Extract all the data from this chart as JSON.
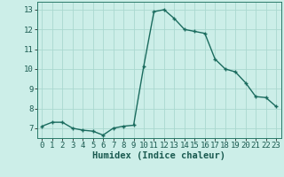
{
  "x": [
    0,
    1,
    2,
    3,
    4,
    5,
    6,
    7,
    8,
    9,
    10,
    11,
    12,
    13,
    14,
    15,
    16,
    17,
    18,
    19,
    20,
    21,
    22,
    23
  ],
  "y": [
    7.1,
    7.3,
    7.3,
    7.0,
    6.9,
    6.85,
    6.65,
    7.0,
    7.1,
    7.15,
    10.15,
    12.9,
    13.0,
    12.55,
    12.0,
    11.9,
    11.8,
    10.5,
    10.0,
    9.85,
    9.3,
    8.6,
    8.55,
    8.1
  ],
  "line_color": "#1a6b5e",
  "marker": "+",
  "marker_size": 3,
  "marker_lw": 1.0,
  "bg_color": "#cceee8",
  "grid_color": "#aad8d0",
  "xlabel": "Humidex (Indice chaleur)",
  "xlabel_fontsize": 7.5,
  "ylim": [
    6.5,
    13.4
  ],
  "xlim": [
    -0.5,
    23.5
  ],
  "yticks": [
    7,
    8,
    9,
    10,
    11,
    12,
    13
  ],
  "xticks": [
    0,
    1,
    2,
    3,
    4,
    5,
    6,
    7,
    8,
    9,
    10,
    11,
    12,
    13,
    14,
    15,
    16,
    17,
    18,
    19,
    20,
    21,
    22,
    23
  ],
  "tick_fontsize": 6.5,
  "line_width": 1.0,
  "spine_color": "#2a7a6a"
}
